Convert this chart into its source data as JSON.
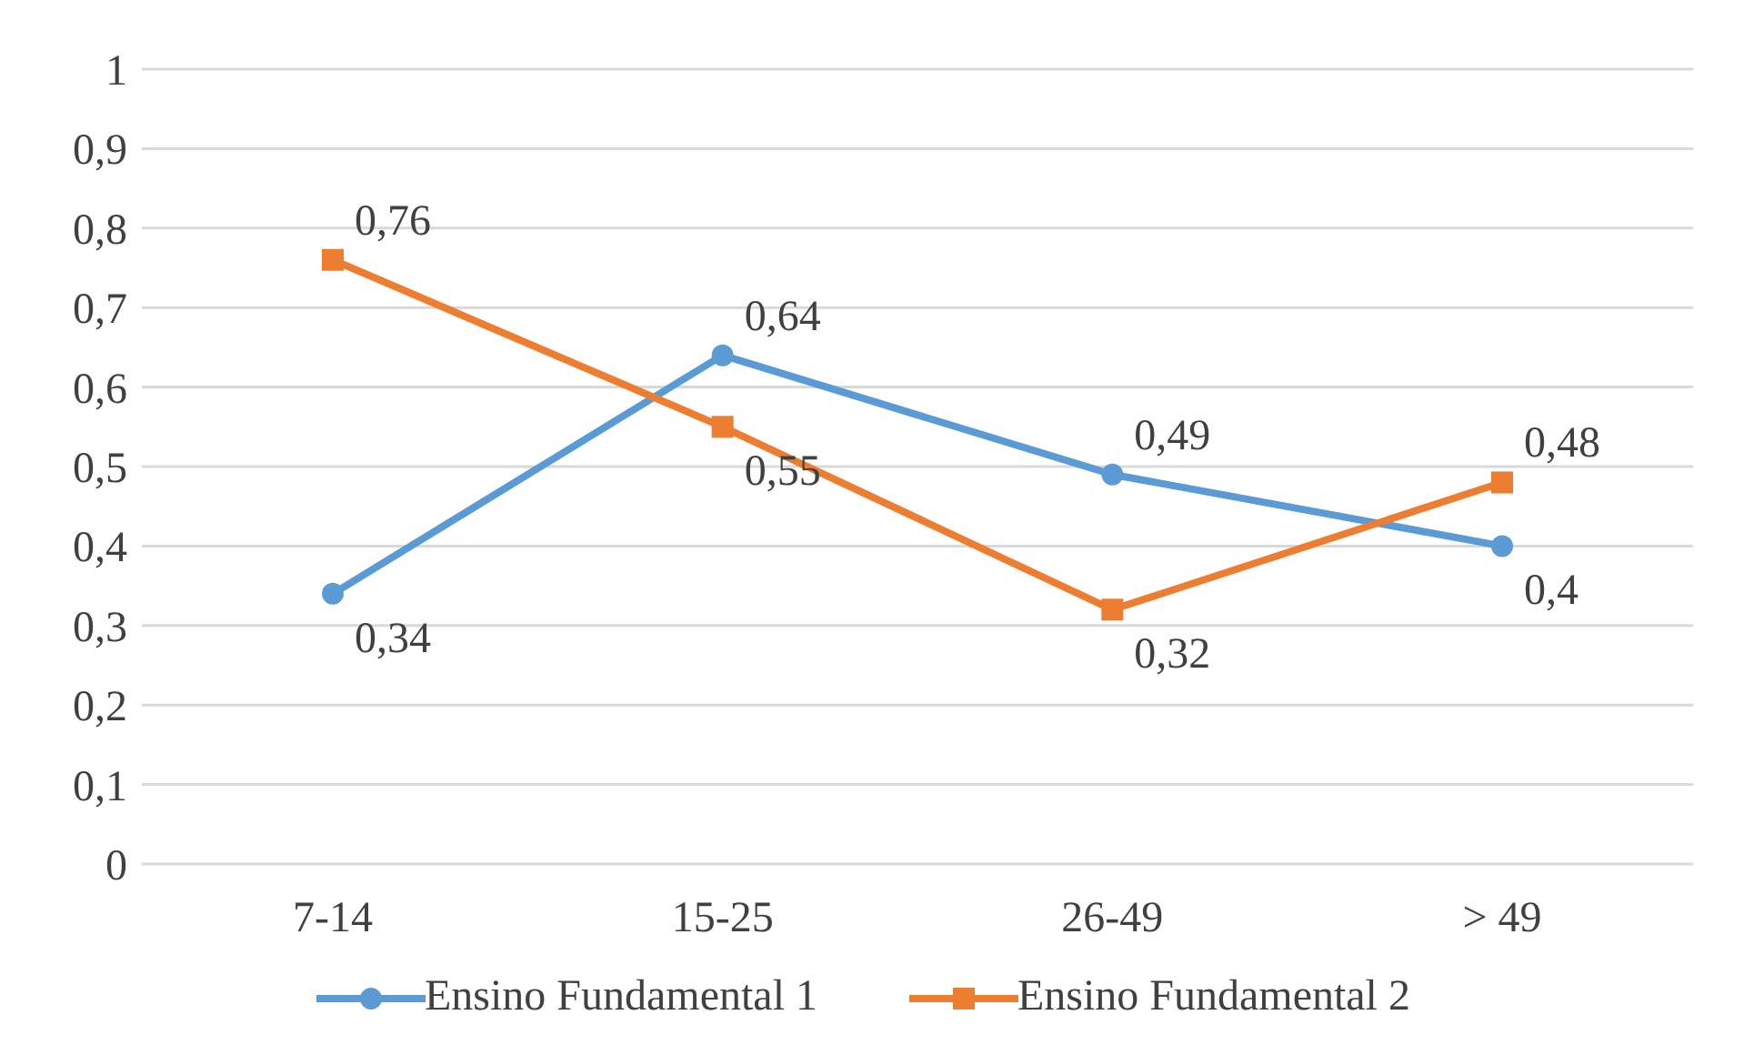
{
  "chart_data": {
    "type": "line",
    "categories": [
      "7-14",
      "15-25",
      "26-49",
      "> 49"
    ],
    "series": [
      {
        "name": "Ensino Fundamental 1",
        "color": "#5b9bd5",
        "marker": "circle",
        "values": [
          0.34,
          0.64,
          0.49,
          0.4
        ],
        "value_labels": [
          "0,34",
          "0,64",
          "0,49",
          "0,4"
        ]
      },
      {
        "name": "Ensino Fundamental 2",
        "color": "#ed7d31",
        "marker": "square",
        "values": [
          0.76,
          0.55,
          0.32,
          0.48
        ],
        "value_labels": [
          "0,76",
          "0,55",
          "0,32",
          "0,48"
        ]
      }
    ],
    "ylim": [
      0,
      1
    ],
    "yticks": [
      0,
      {
        "value": 0.1,
        "label": "0,1"
      },
      {
        "value": 0.2,
        "label": "0,2"
      },
      {
        "value": 0.3,
        "label": "0,3"
      },
      {
        "value": 0.4,
        "label": "0,4"
      },
      {
        "value": 0.5,
        "label": "0,5"
      },
      {
        "value": 0.6,
        "label": "0,6"
      },
      {
        "value": 0.7,
        "label": "0,7"
      },
      {
        "value": 0.8,
        "label": "0,8"
      },
      {
        "value": 0.9,
        "label": "0,9"
      },
      1
    ],
    "grid": "y",
    "legend": "bottom"
  }
}
